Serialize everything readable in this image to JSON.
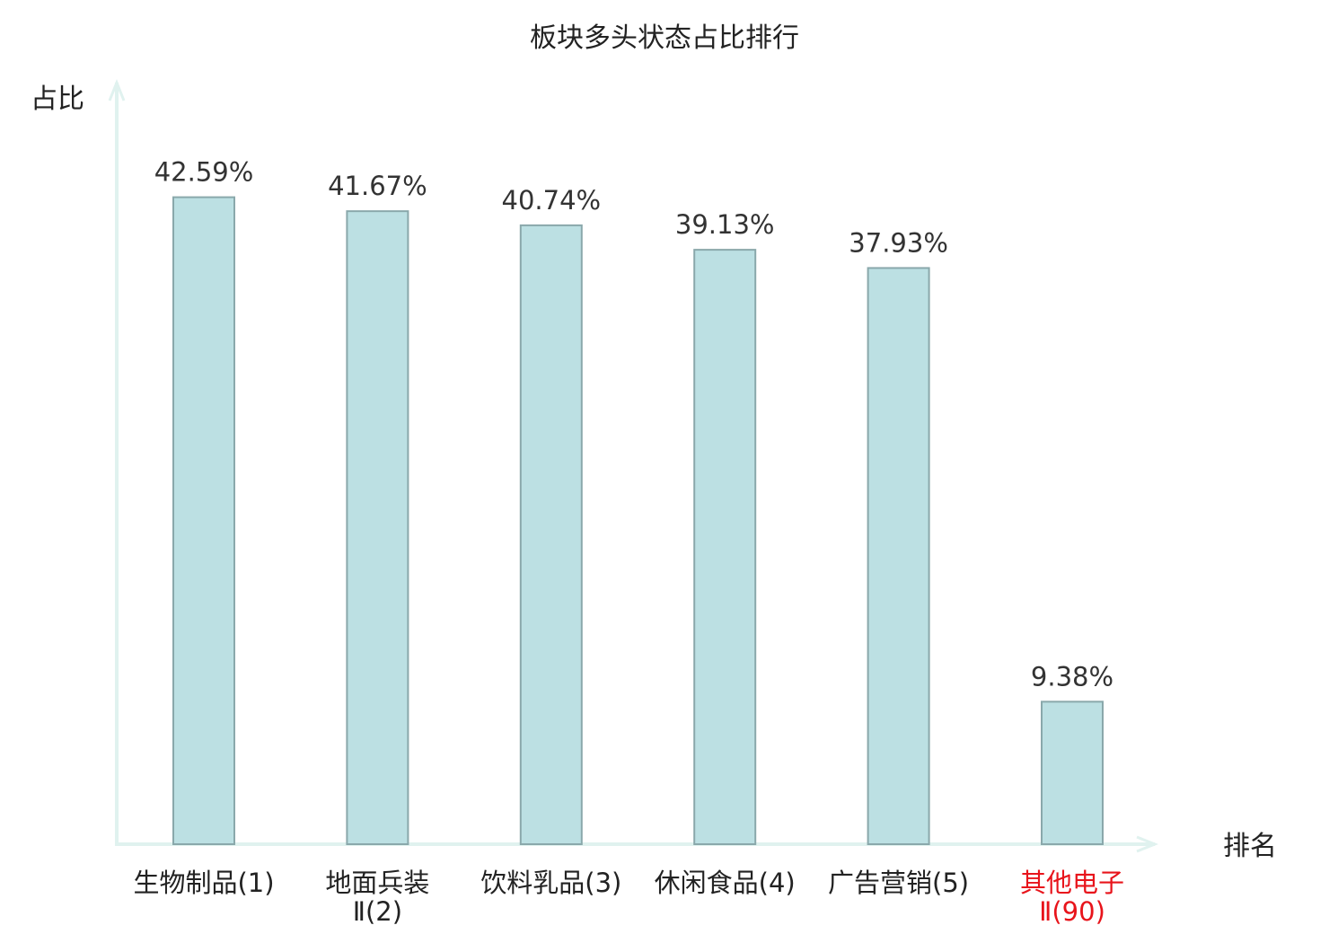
{
  "colors": {
    "bar_fill": "#bce0e3",
    "bar_stroke": "#8aa8ab",
    "axis": "#e0f2ef",
    "highlight_text": "#e8141b",
    "normal_text": "#222222"
  },
  "chart_data": {
    "type": "bar",
    "title": "板块多头状态占比排行",
    "ylabel": "占比",
    "xlabel": "排名",
    "ylim": [
      0,
      47
    ],
    "grid": false,
    "categories": [
      {
        "name": "生物制品",
        "rank": "(1)",
        "value": 42.59,
        "label": "42.59%",
        "highlight": false
      },
      {
        "name": "地面兵装",
        "name2": "Ⅱ",
        "rank": "(2)",
        "value": 41.67,
        "label": "41.67%",
        "highlight": false
      },
      {
        "name": "饮料乳品",
        "rank": "(3)",
        "value": 40.74,
        "label": "40.74%",
        "highlight": false
      },
      {
        "name": "休闲食品",
        "rank": "(4)",
        "value": 39.13,
        "label": "39.13%",
        "highlight": false
      },
      {
        "name": "广告营销",
        "rank": "(5)",
        "value": 37.93,
        "label": "37.93%",
        "highlight": false
      },
      {
        "name": "其他电子",
        "name2": "Ⅱ",
        "rank": "(90)",
        "value": 9.38,
        "label": "9.38%",
        "highlight": true
      }
    ]
  }
}
